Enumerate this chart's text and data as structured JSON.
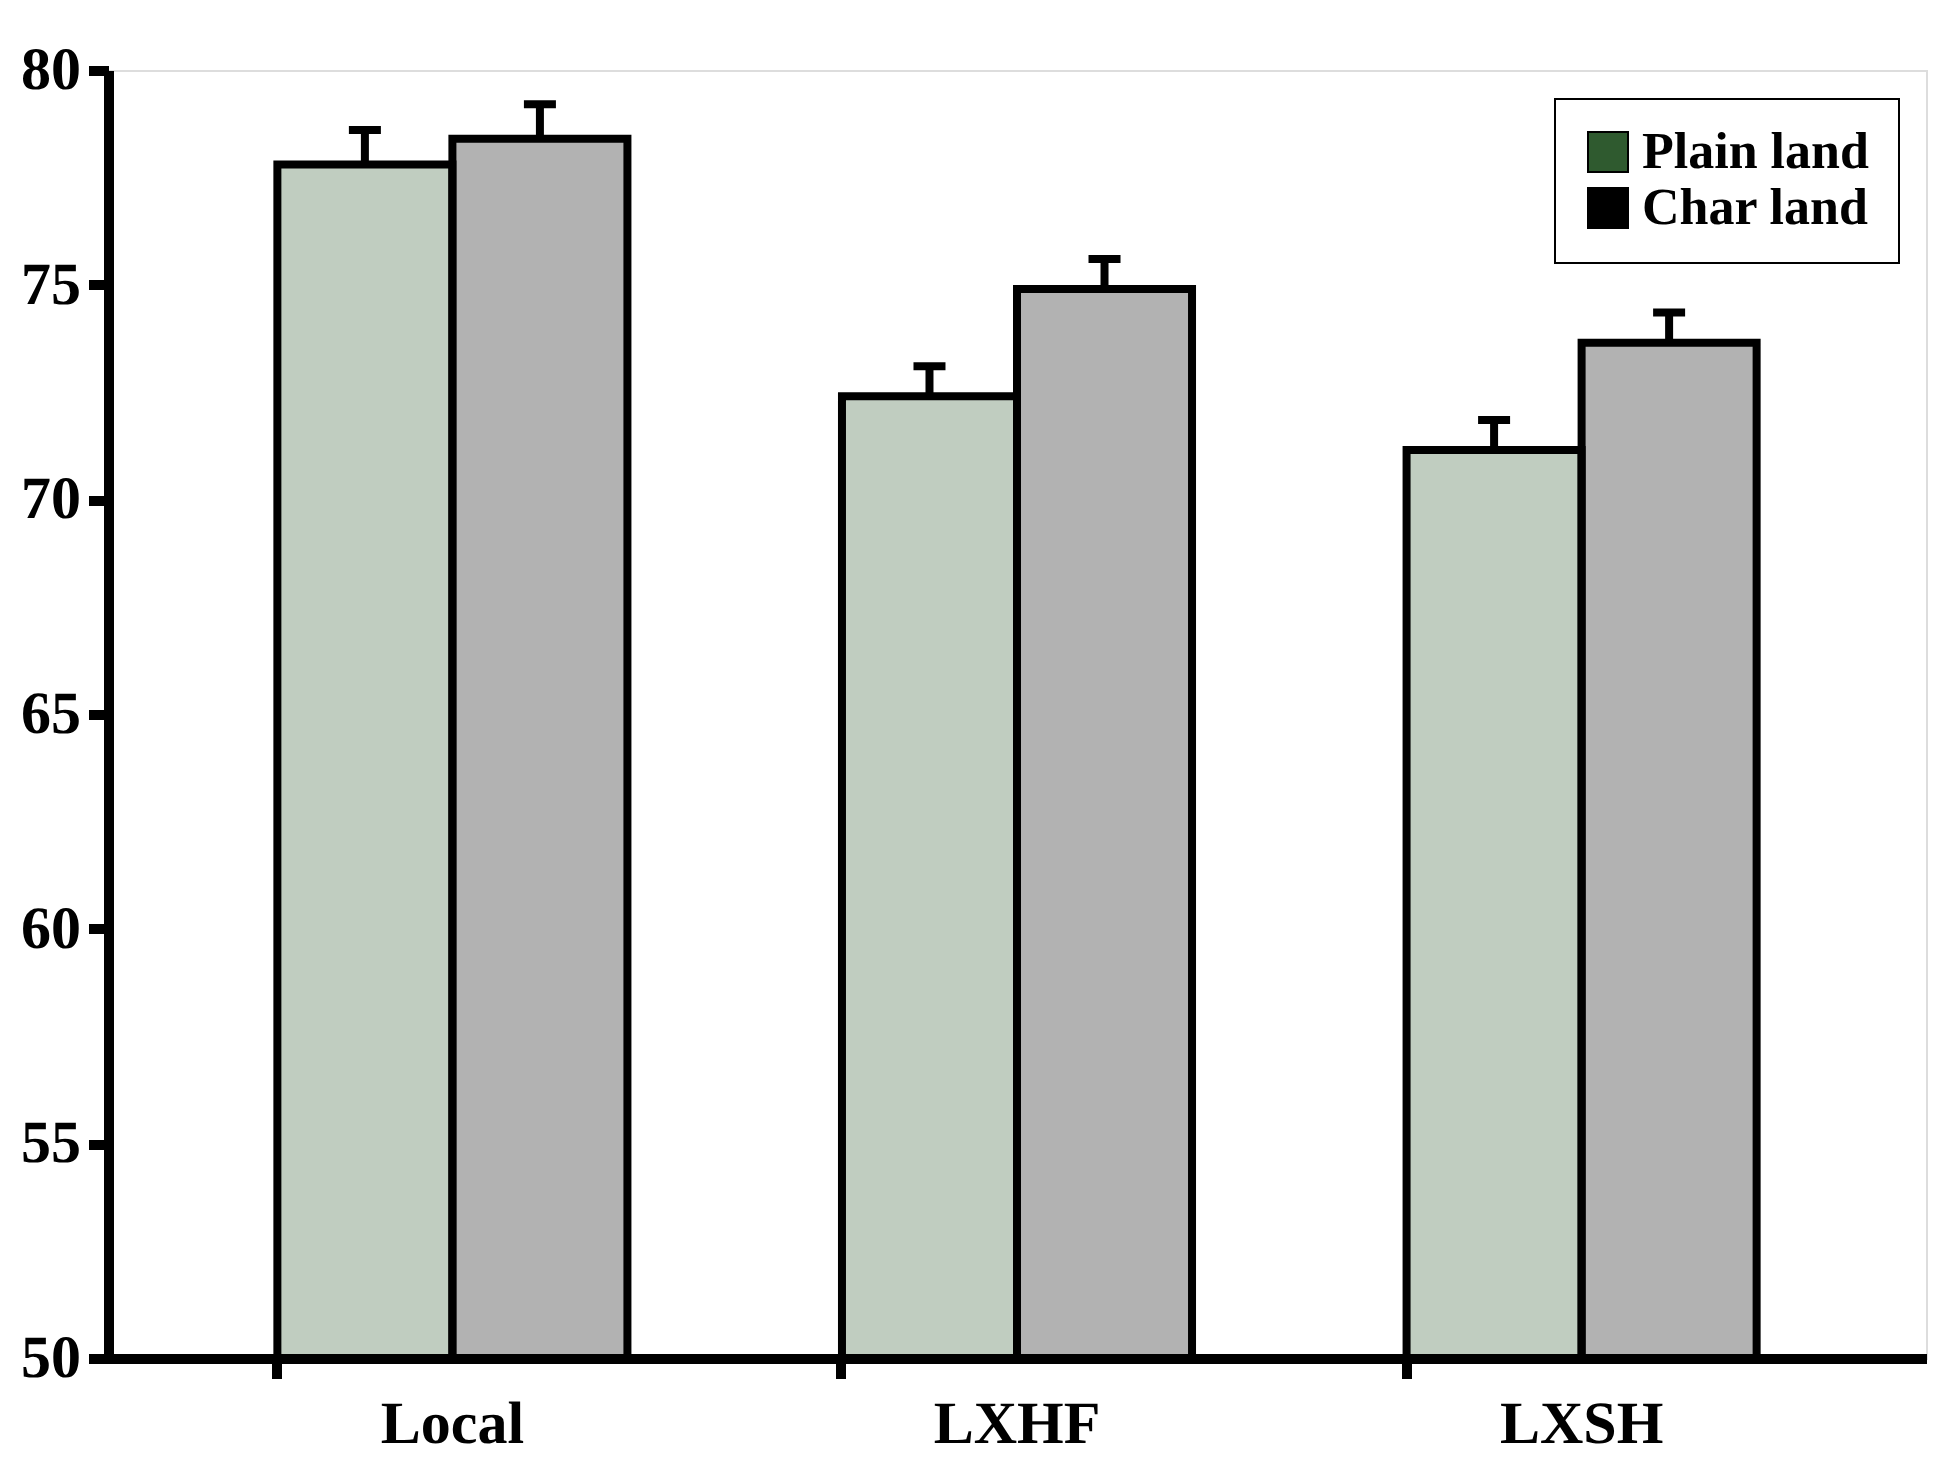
{
  "chart_data": {
    "type": "bar",
    "categories": [
      "Local",
      "LXHF",
      "LXSH"
    ],
    "series": [
      {
        "name": "Plain land",
        "color": "#2f5a2f",
        "values": [
          77.8,
          72.4,
          71.15
        ],
        "errors": [
          [
            77.8,
            78.6
          ],
          [
            72.4,
            73.1
          ],
          [
            71.15,
            71.85
          ]
        ]
      },
      {
        "name": "Char land",
        "color": "#000000",
        "values": [
          78.4,
          74.9,
          73.65
        ],
        "errors": [
          [
            78.4,
            79.2
          ],
          [
            74.9,
            75.6
          ],
          [
            73.65,
            74.35
          ]
        ]
      }
    ],
    "ylim": [
      50,
      80
    ],
    "yticks": [
      50,
      55,
      60,
      65,
      70,
      75,
      80
    ],
    "grid": false,
    "legend": "top right"
  }
}
